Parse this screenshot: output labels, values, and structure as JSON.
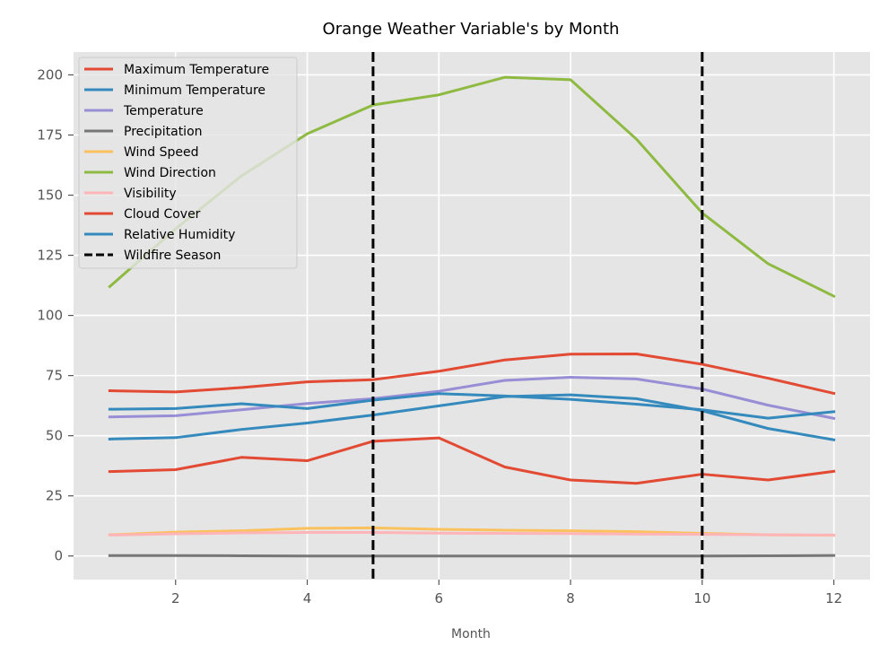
{
  "chart_data": {
    "type": "line",
    "title": "Orange Weather Variable's by Month",
    "xlabel": "Month",
    "ylabel": "",
    "xlim": [
      0.45,
      12.55
    ],
    "ylim": [
      -9.8,
      209.5
    ],
    "xticks": [
      2,
      4,
      6,
      8,
      10,
      12
    ],
    "yticks": [
      0,
      25,
      50,
      75,
      100,
      125,
      150,
      175,
      200
    ],
    "grid": true,
    "legend_position": "top-left",
    "x": [
      1,
      2,
      3,
      4,
      5,
      6,
      7,
      8,
      9,
      10,
      11,
      12
    ],
    "series": [
      {
        "name": "Maximum Temperature",
        "color": "#E24A33",
        "values": [
          68.7,
          68.2,
          70.0,
          72.4,
          73.3,
          76.8,
          81.5,
          83.9,
          84.0,
          79.7,
          73.9,
          67.6
        ]
      },
      {
        "name": "Minimum Temperature",
        "color": "#348ABD",
        "values": [
          48.6,
          49.2,
          52.6,
          55.3,
          58.6,
          62.4,
          66.3,
          67.0,
          65.4,
          60.4,
          53.0,
          48.3
        ]
      },
      {
        "name": "Temperature",
        "color": "#988ED5",
        "values": [
          57.8,
          58.3,
          60.8,
          63.4,
          65.4,
          68.5,
          73.0,
          74.3,
          73.6,
          69.4,
          62.7,
          57.2
        ]
      },
      {
        "name": "Precipitation",
        "color": "#777777",
        "values": [
          0.2,
          0.2,
          0.1,
          0.0,
          0.0,
          0.0,
          0.0,
          0.0,
          0.0,
          0.0,
          0.1,
          0.2
        ]
      },
      {
        "name": "Wind Speed",
        "color": "#FBC15E",
        "values": [
          8.8,
          9.9,
          10.5,
          11.5,
          11.7,
          11.1,
          10.7,
          10.5,
          10.1,
          9.4,
          8.8,
          8.6
        ]
      },
      {
        "name": "Wind Direction",
        "color": "#8EBA42",
        "values": [
          112.0,
          136.0,
          158.0,
          175.5,
          187.5,
          191.7,
          199.0,
          198.0,
          173.3,
          142.6,
          121.5,
          108.0
        ]
      },
      {
        "name": "Visibility",
        "color": "#FFB5B8",
        "values": [
          8.7,
          9.2,
          9.6,
          9.8,
          9.8,
          9.5,
          9.4,
          9.3,
          9.1,
          9.0,
          8.8,
          8.7
        ]
      },
      {
        "name": "Cloud Cover",
        "color": "#E24A33",
        "values": [
          35.1,
          35.9,
          41.0,
          39.6,
          47.7,
          49.1,
          37.0,
          31.6,
          30.2,
          34.0,
          31.6,
          35.2
        ]
      },
      {
        "name": "Relative Humidity",
        "color": "#348ABD",
        "values": [
          61.0,
          61.3,
          63.3,
          61.3,
          64.8,
          67.5,
          66.5,
          65.1,
          63.1,
          60.8,
          57.3,
          60.0
        ]
      }
    ],
    "vlines": {
      "name": "Wildfire Season",
      "color": "#000000",
      "x": [
        5,
        10
      ]
    }
  }
}
